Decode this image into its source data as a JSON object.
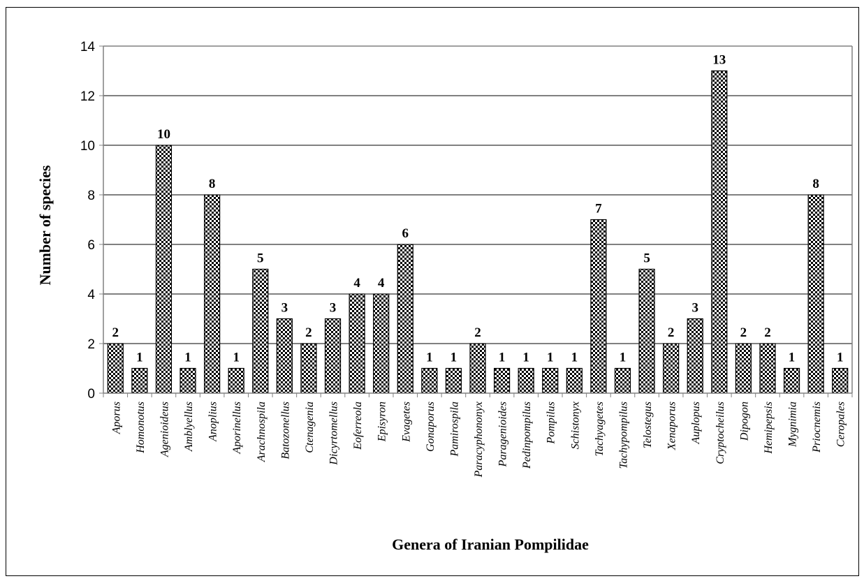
{
  "chart_data": {
    "type": "bar",
    "title": "",
    "xlabel": "Genera of Iranian  Pompilidae",
    "ylabel": "Number  of species",
    "ylim": [
      0,
      14
    ],
    "y_ticks": [
      0,
      2,
      4,
      6,
      8,
      10,
      12,
      14
    ],
    "grid": true,
    "legend": "none",
    "bar_pattern": "checkered",
    "colors": {
      "bar_dark": "#000000",
      "bar_light": "#ffffff",
      "grid": "#000000",
      "axis": "#808080"
    },
    "categories": [
      "Aporus",
      "Homonotus",
      "Agenioideus",
      "Amblyellus",
      "Anoplius",
      "Aporinellus",
      "Arachnospila",
      "Batozonellus",
      "Ctenagenia",
      "Dicyrtomellus",
      "Eoferreola",
      "Episyron",
      "Evagetes",
      "Gonaporus",
      "Pamirospila",
      "Paracyphononyx",
      "Paragenioides",
      "Pedinpompilus",
      "Pompilus",
      "Schistonyx",
      "Tachyagetes",
      "Tachypompilus",
      "Telostegus",
      "Xenaporus",
      "Auplopus",
      "Cryptocheilus",
      "Dipogon",
      "Hemipepsis",
      "Mygnimia",
      "Priocnemis",
      "Ceropales"
    ],
    "values": [
      2,
      1,
      10,
      1,
      8,
      1,
      5,
      3,
      2,
      3,
      4,
      4,
      6,
      1,
      1,
      2,
      1,
      1,
      1,
      1,
      7,
      1,
      5,
      2,
      3,
      13,
      2,
      2,
      1,
      8,
      1
    ]
  }
}
